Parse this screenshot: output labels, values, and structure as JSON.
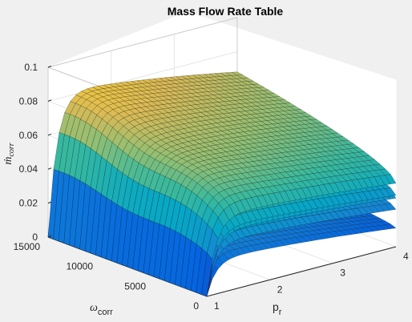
{
  "chart_data": {
    "type": "surface",
    "title": "Mass Flow Rate Table",
    "xlabel": {
      "base": "p",
      "sub": "r"
    },
    "ylabel": {
      "base": "ω",
      "sub": "corr"
    },
    "zlabel": {
      "base": "ṁ",
      "sub": "corr"
    },
    "xlim": [
      1,
      4
    ],
    "ylim": [
      0,
      15000
    ],
    "zlim": [
      0,
      0.1
    ],
    "x_ticks": [
      "1",
      "2",
      "3",
      "4"
    ],
    "y_ticks": [
      "0",
      "5000",
      "10000",
      "15000"
    ],
    "z_ticks": [
      "0",
      "0.02",
      "0.04",
      "0.06",
      "0.08",
      "0.1"
    ],
    "colormap": "parula-like",
    "grid": true,
    "surface_layers": [
      {
        "mdot_at_pr4": 0.068,
        "mdot_max": 0.083
      },
      {
        "mdot_at_pr4": 0.055,
        "mdot_max": 0.07
      },
      {
        "mdot_at_pr4": 0.052,
        "mdot_max": 0.066
      },
      {
        "mdot_at_pr4": 0.04,
        "mdot_max": 0.055
      },
      {
        "mdot_at_pr4": 0.02,
        "mdot_max": 0.037
      }
    ]
  },
  "colors": {
    "background": "#f0f0f0",
    "axes_pane": "#ffffff",
    "mesh_edge": "#1a1a1a",
    "colormap_stops": [
      "#352a87",
      "#0363e1",
      "#1485d4",
      "#06a7c6",
      "#38b99e",
      "#92bf73",
      "#d9ba56",
      "#fcce2e",
      "#f9fb0e"
    ]
  }
}
